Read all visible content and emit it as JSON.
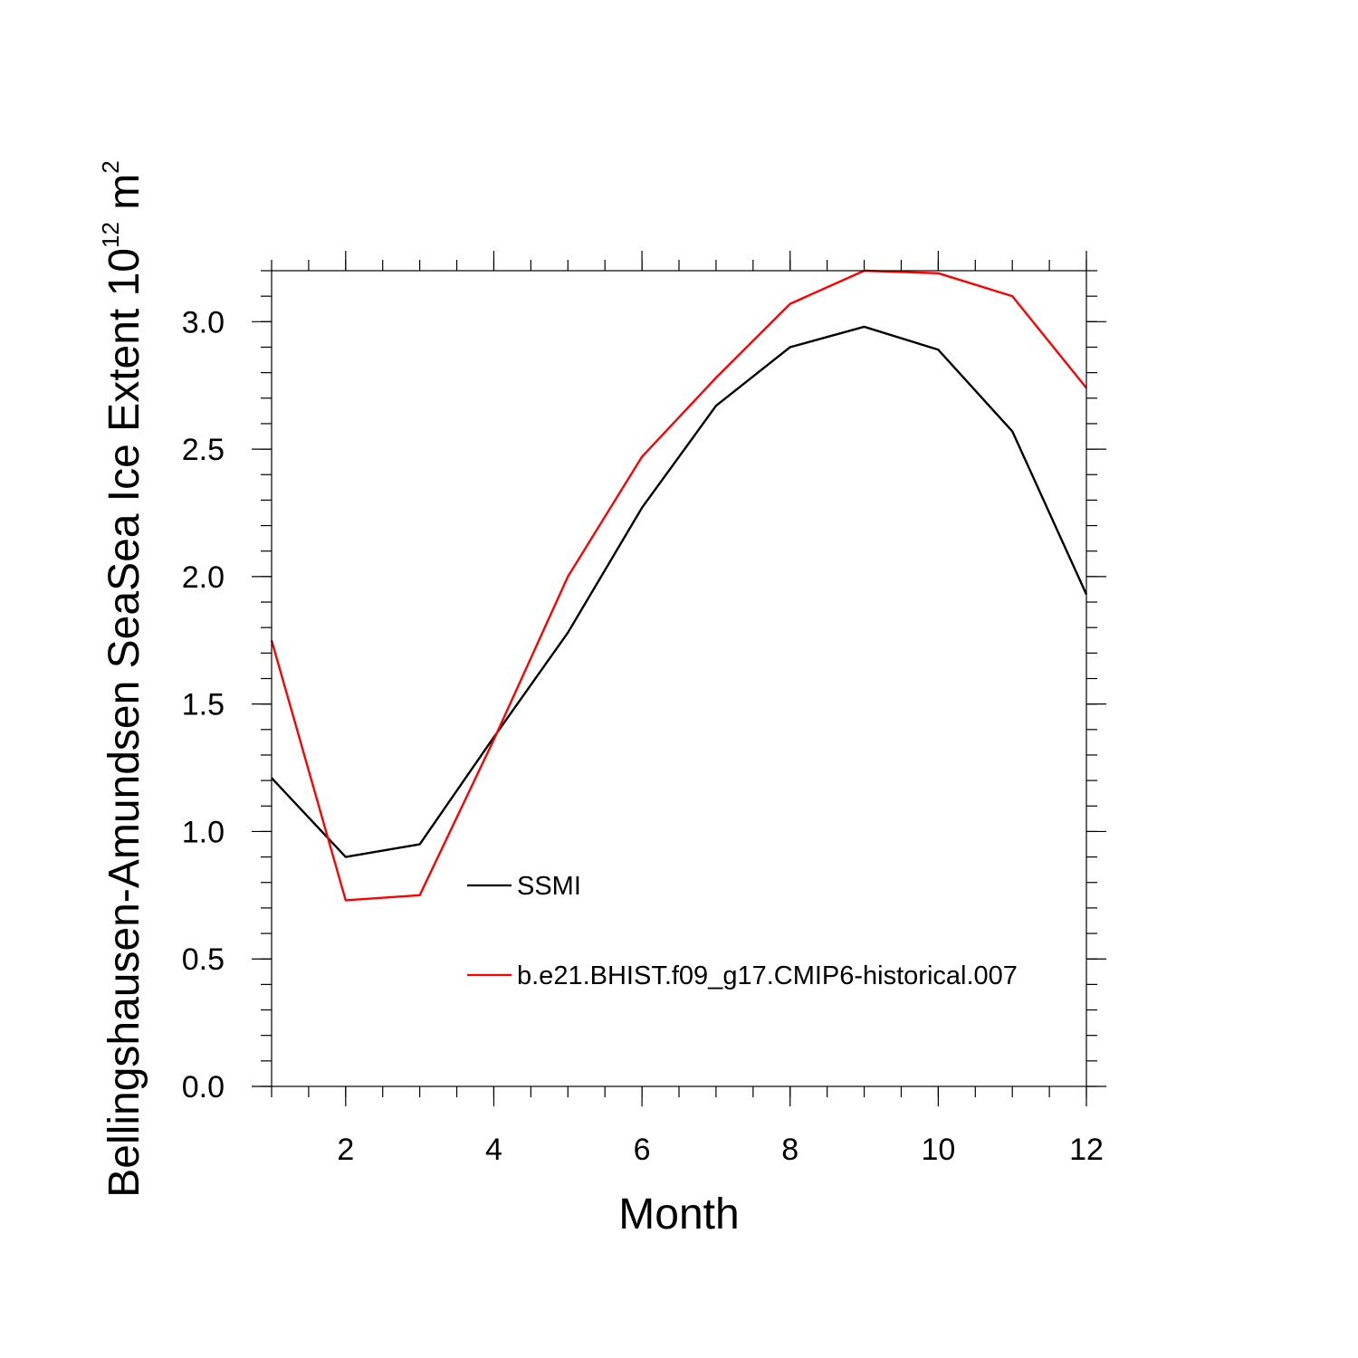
{
  "chart_data": {
    "type": "line",
    "xlabel": "Month",
    "ylabel": {
      "text": "Bellingshausen-Amundsen SeaSea Ice Extent 10",
      "exponent": "12",
      "unit": " m",
      "unit_exponent": "2"
    },
    "xlim": [
      1,
      12
    ],
    "ylim": [
      0,
      3.2
    ],
    "x_ticks": [
      2,
      4,
      6,
      8,
      10,
      12
    ],
    "x_tick_labels": [
      "2",
      "4",
      "6",
      "8",
      "10",
      "12"
    ],
    "y_ticks": [
      0,
      0.5,
      1,
      1.5,
      2,
      2.5,
      3
    ],
    "y_tick_labels": [
      "0.0",
      "0.5",
      "1.0",
      "1.5",
      "2.0",
      "2.5",
      "3.0"
    ],
    "x": [
      1,
      2,
      3,
      4,
      5,
      6,
      7,
      8,
      9,
      10,
      11,
      12
    ],
    "series": [
      {
        "name": "SSMI",
        "color": "#000000",
        "values": [
          1.21,
          0.9,
          0.95,
          1.37,
          1.78,
          2.27,
          2.67,
          2.9,
          2.98,
          2.89,
          2.57,
          1.93
        ]
      },
      {
        "name": "b.e21.BHIST.f09_g17.CMIP6-historical.007",
        "color": "#ff0000",
        "values": [
          1.75,
          0.73,
          0.75,
          1.36,
          2.0,
          2.47,
          2.78,
          3.07,
          3.2,
          3.19,
          3.1,
          2.74
        ]
      }
    ],
    "legend_position": "lower-center",
    "grid": false
  }
}
